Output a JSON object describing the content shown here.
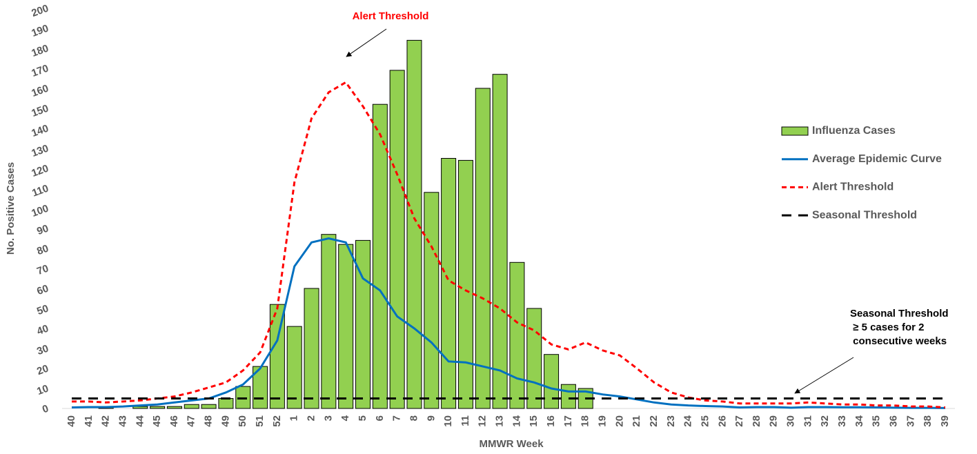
{
  "chart_data": {
    "type": "bar",
    "y_label": "No. Positive Cases",
    "x_label": "MMWR Week",
    "categories": [
      "40",
      "41",
      "42",
      "43",
      "44",
      "45",
      "46",
      "47",
      "48",
      "49",
      "50",
      "51",
      "52",
      "1",
      "2",
      "3",
      "4",
      "5",
      "6",
      "7",
      "8",
      "9",
      "10",
      "11",
      "12",
      "13",
      "14",
      "15",
      "16",
      "17",
      "18",
      "19",
      "20",
      "21",
      "22",
      "23",
      "24",
      "25",
      "26",
      "27",
      "28",
      "29",
      "30",
      "31",
      "32",
      "33",
      "34",
      "35",
      "36",
      "37",
      "38",
      "39"
    ],
    "ylim": [
      0,
      200
    ],
    "yticks": [
      0,
      10,
      20,
      30,
      40,
      50,
      60,
      70,
      80,
      90,
      100,
      110,
      120,
      130,
      140,
      150,
      160,
      170,
      180,
      190,
      200
    ],
    "grid": false,
    "legend": "right",
    "series": [
      {
        "name": "Influenza Cases",
        "type": "bar",
        "color": "#92d050",
        "values": [
          0,
          0,
          1,
          0,
          1,
          1,
          1,
          2,
          2,
          5,
          11,
          21,
          52,
          41,
          60,
          87,
          82,
          84,
          152,
          169,
          184,
          108,
          125,
          124,
          160,
          167,
          73,
          50,
          27,
          12,
          10,
          null,
          null,
          null,
          null,
          null,
          null,
          null,
          null,
          null,
          null,
          null,
          null,
          null,
          null,
          null,
          null,
          null,
          null,
          null,
          null,
          null
        ]
      },
      {
        "name": "Average Epidemic Curve",
        "type": "line",
        "color": "#0070c0",
        "dash": "solid",
        "values": [
          0.5,
          0.7,
          0.7,
          1,
          1.5,
          2,
          3,
          4,
          5,
          8,
          12,
          20,
          34,
          71,
          83,
          85,
          83,
          65,
          59,
          46,
          40,
          33,
          23.5,
          23,
          21,
          19,
          15,
          13,
          10,
          8.5,
          8.5,
          7,
          6,
          4.5,
          3,
          2,
          1.5,
          1.2,
          1,
          0.5,
          0.7,
          0.7,
          0.4,
          0.7,
          0.7,
          0.6,
          0.6,
          0.5,
          0.4,
          0.3,
          0.3,
          0.2
        ]
      },
      {
        "name": "Alert Threshold",
        "type": "line",
        "color": "#ff0000",
        "dash": "short",
        "values": [
          3.5,
          3.5,
          3,
          3.5,
          4,
          5,
          6,
          8,
          10.5,
          13,
          19,
          28,
          50,
          113,
          145,
          158,
          163,
          151,
          137,
          117,
          95,
          81,
          64,
          59,
          55,
          50,
          43,
          39,
          32,
          29.5,
          33,
          29,
          26.5,
          20,
          13,
          8,
          5.5,
          4,
          3.5,
          2.5,
          2.5,
          2.5,
          2.5,
          3,
          2.5,
          2,
          2,
          1.5,
          1.5,
          1,
          1,
          0.5
        ]
      },
      {
        "name": "Seasonal Threshold",
        "type": "line",
        "color": "#000000",
        "dash": "long",
        "values": [
          5,
          5,
          5,
          5,
          5,
          5,
          5,
          5,
          5,
          5,
          5,
          5,
          5,
          5,
          5,
          5,
          5,
          5,
          5,
          5,
          5,
          5,
          5,
          5,
          5,
          5,
          5,
          5,
          5,
          5,
          5,
          5,
          5,
          5,
          5,
          5,
          5,
          5,
          5,
          5,
          5,
          5,
          5,
          5,
          5,
          5,
          5,
          5,
          5,
          5,
          5,
          5
        ]
      }
    ],
    "annotations": [
      {
        "lines": [
          "Alert Threshold"
        ],
        "color": "#ff0000"
      },
      {
        "lines": [
          "Seasonal Threshold",
          " ≥ 5 cases for 2",
          " consecutive weeks"
        ],
        "color": "#000000"
      }
    ]
  }
}
